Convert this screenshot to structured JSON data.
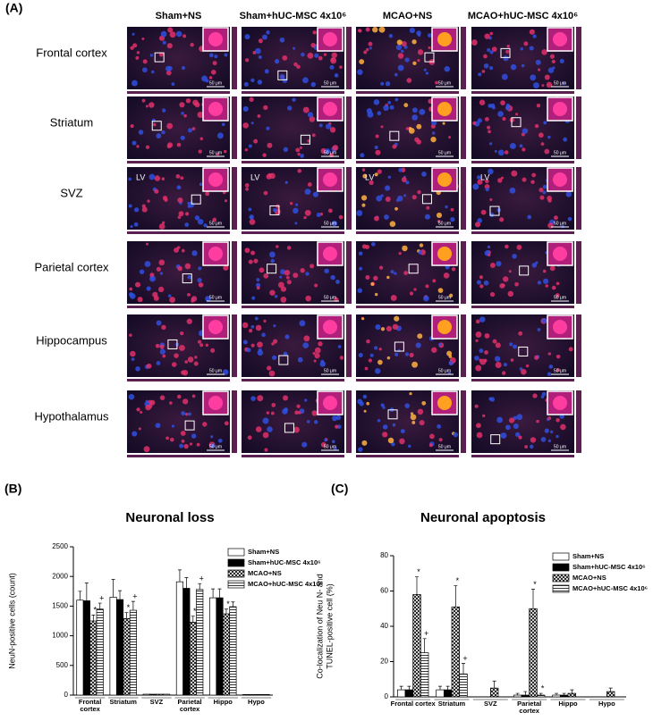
{
  "panel_a": {
    "label": "(A)",
    "columns": [
      "Sham+NS",
      "Sham+hUC-MSC 4x10⁶",
      "MCAO+NS",
      "MCAO+hUC-MSC 4x10⁶"
    ],
    "rows": [
      "Frontal cortex",
      "Striatum",
      "SVZ",
      "Parietal cortex",
      "Hippocampus",
      "Hypothalamus"
    ],
    "scale_bar": "50 μm",
    "region_label": "LV"
  },
  "chart_data": [
    {
      "type": "bar",
      "panel_label": "(B)",
      "title": "Neuronal loss",
      "ylabel": [
        "NeuN-positive cells (count)"
      ],
      "categories": [
        "Frontal cortex",
        "Striatum",
        "SVZ",
        "Parietal cortex",
        "Hippo",
        "Hypo"
      ],
      "ylim": [
        0,
        2500
      ],
      "yticks": [
        0,
        500,
        1000,
        1500,
        2000,
        2500
      ],
      "legend": "upper right",
      "series": [
        {
          "name": "Sham+NS",
          "color": "#ffffff",
          "pattern": "solid",
          "values": [
            1600,
            1650,
            15,
            1910,
            1640,
            10
          ],
          "errors": [
            150,
            300,
            0,
            200,
            150,
            0
          ],
          "annotations": [
            null,
            null,
            null,
            null,
            null,
            null
          ]
        },
        {
          "name": "Sham+hUC-MSC 4x10⁶",
          "color": "#000000",
          "pattern": "solid",
          "values": [
            1590,
            1610,
            15,
            1800,
            1640,
            10
          ],
          "errors": [
            300,
            150,
            0,
            180,
            150,
            0
          ],
          "annotations": [
            null,
            null,
            null,
            null,
            null,
            null
          ]
        },
        {
          "name": "MCAO+NS",
          "color": "#ffffff",
          "pattern": "crosshatch",
          "values": [
            1250,
            1290,
            15,
            1230,
            1370,
            10
          ],
          "errors": [
            100,
            100,
            0,
            100,
            80,
            0
          ],
          "annotations": [
            "*",
            "*",
            null,
            "*",
            "*",
            null
          ]
        },
        {
          "name": "MCAO+hUC-MSC 4x10⁶",
          "color": "#ffffff",
          "pattern": "hlines",
          "values": [
            1450,
            1430,
            15,
            1780,
            1490,
            10
          ],
          "errors": [
            100,
            150,
            0,
            100,
            80,
            0
          ],
          "annotations": [
            "+",
            "+",
            null,
            "+",
            null,
            null
          ]
        }
      ]
    },
    {
      "type": "bar",
      "panel_label": "(C)",
      "title": "Neuronal apoptosis",
      "ylabel": [
        "Co-localization of Neu N- and",
        "TUNEL-positive cell (%)"
      ],
      "categories": [
        "Frontal cortex",
        "Striatum",
        "SVZ",
        "Parietal cortex",
        "Hippo",
        "Hypo"
      ],
      "ylim": [
        0,
        80
      ],
      "yticks": [
        0,
        20,
        40,
        60,
        80
      ],
      "legend": "upper right",
      "series": [
        {
          "name": "Sham+NS",
          "color": "#ffffff",
          "pattern": "solid",
          "values": [
            4,
            4,
            0,
            1,
            1,
            0
          ],
          "errors": [
            2,
            2,
            0,
            1,
            1,
            0
          ],
          "annotations": [
            null,
            null,
            null,
            null,
            null,
            null
          ]
        },
        {
          "name": "Sham+hUC-MSC 4x10⁶",
          "color": "#000000",
          "pattern": "solid",
          "values": [
            4,
            4,
            0,
            1,
            1,
            0
          ],
          "errors": [
            2,
            2,
            0,
            2,
            1,
            0
          ],
          "annotations": [
            null,
            null,
            null,
            null,
            null,
            null
          ]
        },
        {
          "name": "MCAO+NS",
          "color": "#ffffff",
          "pattern": "crosshatch",
          "values": [
            58,
            51,
            5,
            50,
            2,
            3
          ],
          "errors": [
            10,
            12,
            4,
            11,
            2,
            2
          ],
          "annotations": [
            "*",
            "*",
            null,
            "*",
            null,
            null
          ]
        },
        {
          "name": "MCAO+hUC-MSC 4x10⁶",
          "color": "#ffffff",
          "pattern": "hlines",
          "values": [
            25,
            13,
            0,
            1,
            0,
            0
          ],
          "errors": [
            8,
            6,
            0,
            1,
            0,
            0
          ],
          "annotations": [
            "+",
            "+",
            null,
            "*",
            null,
            null
          ]
        }
      ]
    }
  ]
}
